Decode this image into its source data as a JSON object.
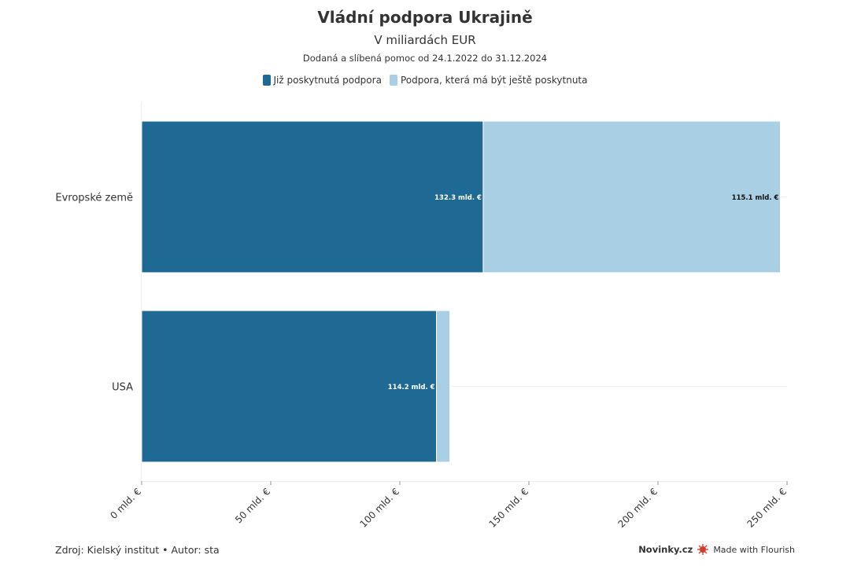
{
  "chart_data": {
    "type": "bar",
    "orientation": "horizontal",
    "stacked": true,
    "title": "Vládní podpora Ukrajině",
    "subtitle": "V miliardách EUR",
    "note": "Dodaná a slíbená pomoc od 24.1.2022 do 31.12.2024",
    "categories": [
      "Evropské země",
      "USA"
    ],
    "series": [
      {
        "name": "Již poskytnutá podpora",
        "color": "#1f6a94",
        "values": [
          132.3,
          114.2
        ],
        "labels": [
          "132.3 mld. €",
          "114.2 mld. €"
        ]
      },
      {
        "name": "Podpora, která má být ještě poskytnuta",
        "color": "#a8cfe4",
        "values": [
          115.1,
          5.2
        ],
        "labels": [
          "115.1 mld. €",
          ""
        ]
      }
    ],
    "xlim": [
      0,
      250
    ],
    "xticks": [
      0,
      50,
      100,
      150,
      200,
      250
    ],
    "xtick_labels": [
      "0 mld. €",
      "50 mld. €",
      "100 mld. €",
      "150 mld. €",
      "200 mld. €",
      "250 mld. €"
    ],
    "legend_position": "top-center",
    "grid": true
  },
  "footer": {
    "source": "Zdroj: Kielský institut • Autor: sta",
    "brand": "Novinky.cz",
    "made_with": "Made with Flourish"
  }
}
